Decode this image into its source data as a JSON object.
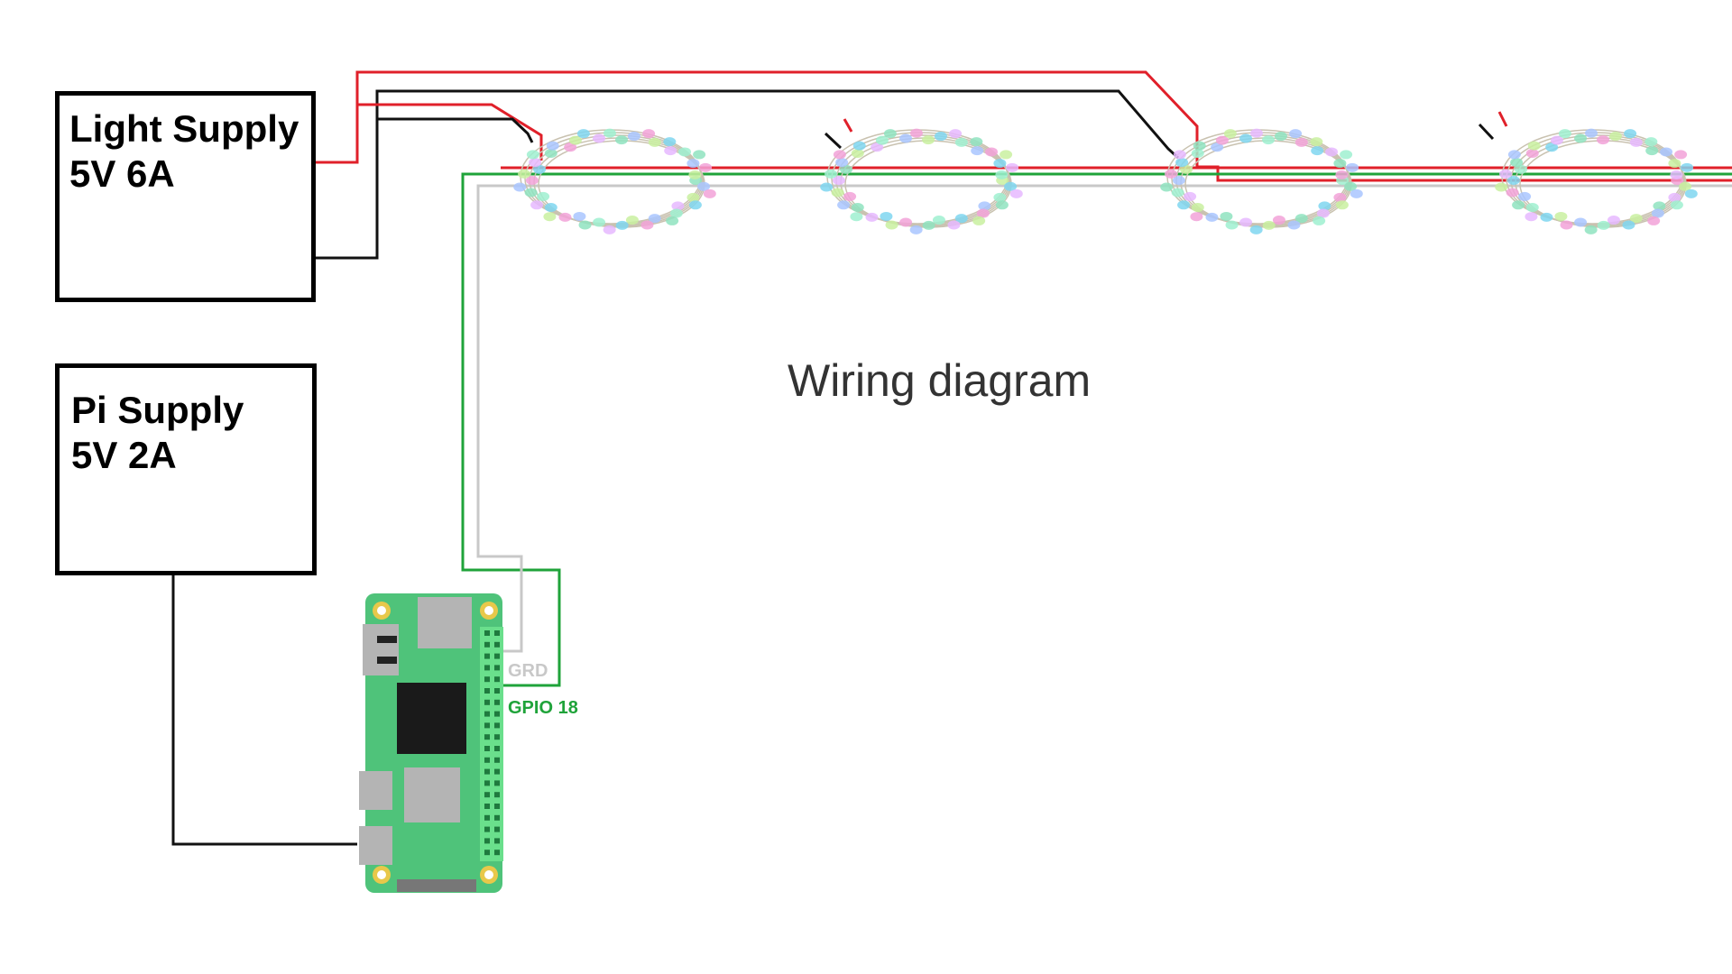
{
  "light_supply": {
    "name": "Light Supply",
    "spec": "5V 6A"
  },
  "pi_supply": {
    "name": "Pi Supply",
    "spec": "5V 2A"
  },
  "title": "Wiring diagram",
  "pins": {
    "ground": "GRD",
    "data": "GPIO 18"
  },
  "colors": {
    "power_wire": "#e0202a",
    "ground_wire": "#111111",
    "data_wire": "#1fa33a",
    "grd_wire": "#c8c8c8",
    "pi_board": "#4fc37a",
    "pin_header": "#6adf8c",
    "mount_hole": "#e8c84a",
    "chip": "#1a1a1a",
    "port": "#b4b4b4"
  },
  "led_colors": [
    "#8fe3c0",
    "#a9c6ff",
    "#f2a2d8",
    "#c9f0a0",
    "#7fd6f0",
    "#e6b8ff",
    "#9ff0d0"
  ]
}
